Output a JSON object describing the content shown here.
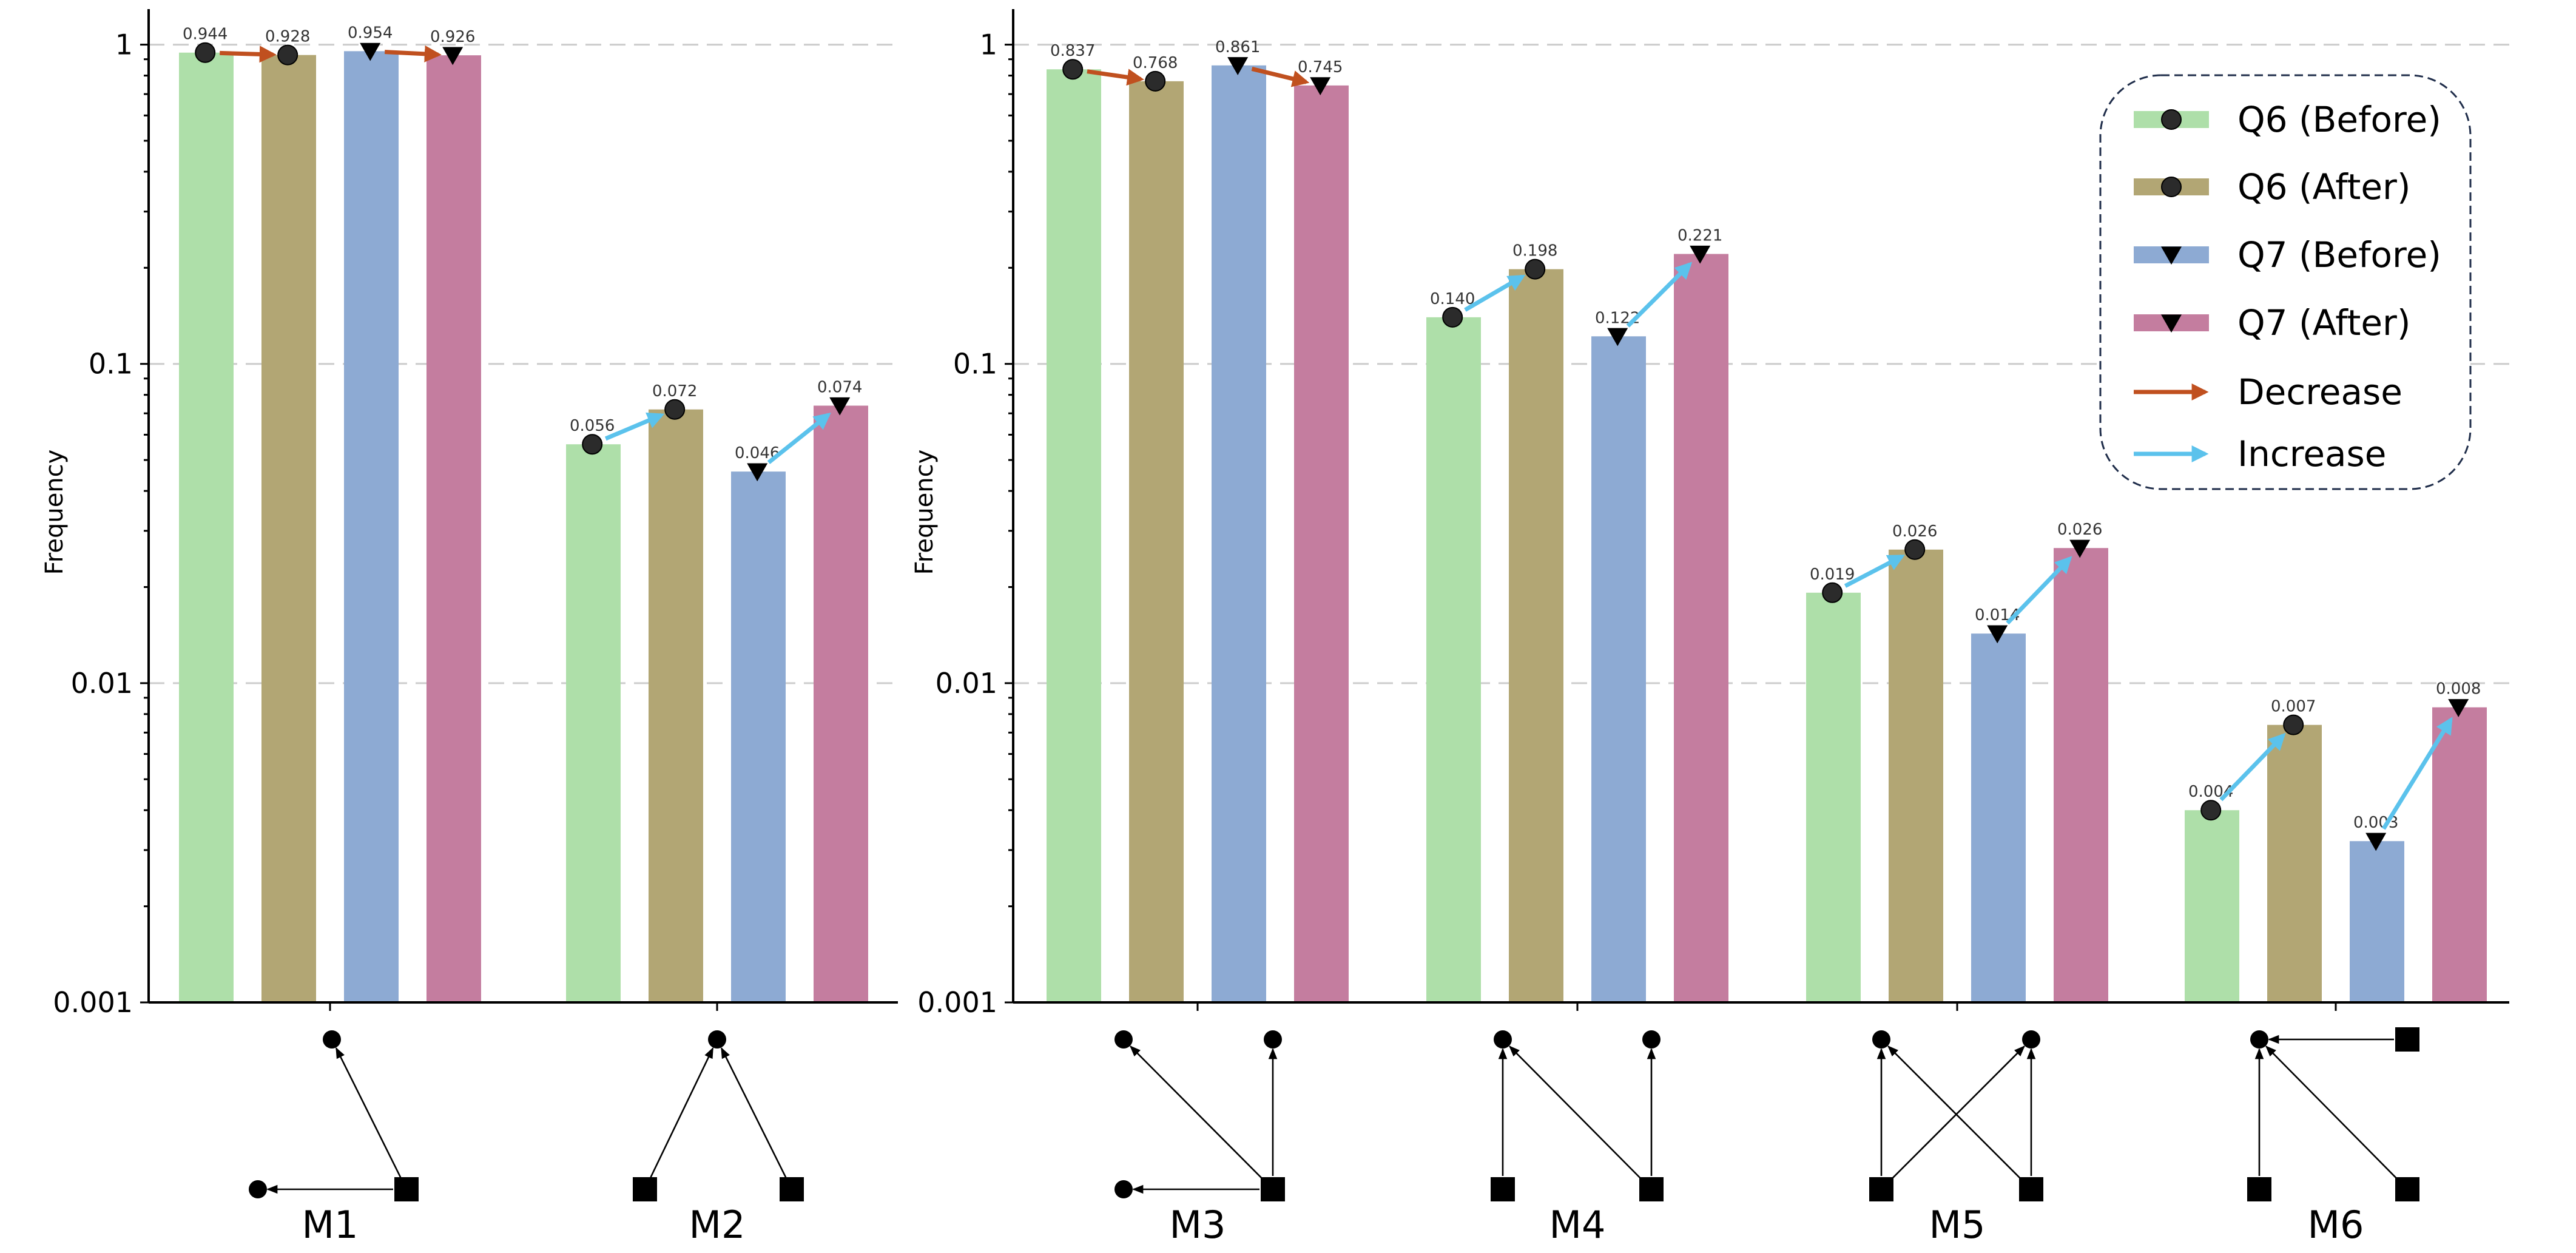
{
  "chart_data": {
    "type": "bar",
    "yscale": "log",
    "ylabel": "Frequency",
    "ylim": [
      0.001,
      1.35
    ],
    "yticks": [
      {
        "value": 1,
        "label": "1"
      },
      {
        "value": 0.1,
        "label": "0.1"
      },
      {
        "value": 0.01,
        "label": "0.01"
      },
      {
        "value": 0.001,
        "label": "0.001"
      }
    ],
    "grid": true,
    "legend_position": "top-right",
    "series": [
      {
        "name": "Q6 (Before)",
        "color": "#aedfa9",
        "marker": "circle"
      },
      {
        "name": "Q6 (After)",
        "color": "#b2a674",
        "marker": "circle"
      },
      {
        "name": "Q7 (Before)",
        "color": "#8daad3",
        "marker": "triangle-down"
      },
      {
        "name": "Q7 (After)",
        "color": "#c47d9f",
        "marker": "triangle-down"
      }
    ],
    "arrows": [
      {
        "name": "Decrease",
        "color": "#c0501f"
      },
      {
        "name": "Increase",
        "color": "#5bc2ec"
      }
    ],
    "panels": [
      {
        "groups": [
          {
            "category": "M1",
            "values": [
              0.944,
              0.928,
              0.954,
              0.926
            ],
            "labels": [
              "0.944",
              "0.928",
              "0.954",
              "0.926"
            ]
          },
          {
            "category": "M2",
            "values": [
              0.056,
              0.072,
              0.046,
              0.074
            ],
            "labels": [
              "0.056",
              "0.072",
              "0.046",
              "0.074"
            ]
          }
        ]
      },
      {
        "groups": [
          {
            "category": "M3",
            "values": [
              0.837,
              0.768,
              0.861,
              0.745
            ],
            "labels": [
              "0.837",
              "0.768",
              "0.861",
              "0.745"
            ]
          },
          {
            "category": "M4",
            "values": [
              0.14,
              0.198,
              0.122,
              0.221
            ],
            "labels": [
              "0.140",
              "0.198",
              "0.122",
              "0.221"
            ]
          },
          {
            "category": "M5",
            "values": [
              0.0192,
              0.0262,
              0.0143,
              0.0265
            ],
            "labels": [
              "0.019",
              "0.026",
              "0.014",
              "0.026"
            ]
          },
          {
            "category": "M6",
            "values": [
              0.004,
              0.0074,
              0.0032,
              0.0084
            ],
            "labels": [
              "0.004",
              "0.007",
              "0.003",
              "0.008"
            ]
          }
        ]
      }
    ]
  }
}
